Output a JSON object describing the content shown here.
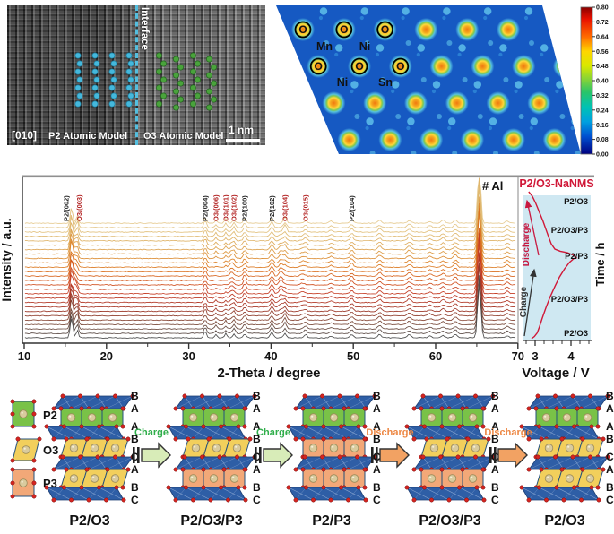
{
  "stem": {
    "zone_axis": "[010]",
    "interface": "Interface",
    "p2_model": "P2 Atomic Model",
    "o3_model": "O3 Atomic Model",
    "scale": "1 nm",
    "p2_dot_color": "#45b8dc",
    "o3_dot_color": "#4aa33c"
  },
  "elf": {
    "o_labels": [
      "O",
      "O",
      "O",
      "O",
      "O",
      "O"
    ],
    "site_labels": [
      "Mn",
      "Ni",
      "Ni",
      "Sn"
    ],
    "colorbar_ticks": [
      "0.80",
      "0.72",
      "0.64",
      "0.56",
      "0.48",
      "0.40",
      "0.32",
      "0.24",
      "0.16",
      "0.08",
      "0.00"
    ],
    "background_color": "#1659c2"
  },
  "chart_data": [
    {
      "type": "line",
      "id": "xrd-waterfall",
      "xlabel": "2-Theta / degree",
      "ylabel": "Intensity / a.u.",
      "xlim": [
        10,
        70
      ],
      "x_ticks": [
        10,
        20,
        30,
        40,
        50,
        60,
        70
      ],
      "n_scans": 27,
      "al_marker": "# Al",
      "sample_label": "P2/O3-NaNMS",
      "sample_label_color": "#d01838",
      "o3_label_color": "#b22222",
      "p2_label_color": "#1a1a1a",
      "scan_color_stops": [
        "#4d4d4d",
        "#7d4a38",
        "#a33628",
        "#c43a24",
        "#d55a1e",
        "#dd7d22",
        "#dda04c",
        "#e0ba72",
        "#e6cb92"
      ],
      "peak_labels": [
        {
          "text": "P2/(002)",
          "two_theta": 15.1,
          "phase": "p2"
        },
        {
          "text": "O3/(003)",
          "two_theta": 16.7,
          "phase": "o3"
        },
        {
          "text": "P2/(004)",
          "two_theta": 32.0,
          "phase": "p2"
        },
        {
          "text": "O3/(006)",
          "two_theta": 33.3,
          "phase": "o3"
        },
        {
          "text": "O3/(101)",
          "two_theta": 34.5,
          "phase": "o3"
        },
        {
          "text": "O3/(102)",
          "two_theta": 35.5,
          "phase": "o3"
        },
        {
          "text": "P2/(100)",
          "two_theta": 36.8,
          "phase": "p2"
        },
        {
          "text": "P2/(102)",
          "two_theta": 40.1,
          "phase": "p2"
        },
        {
          "text": "O3/(104)",
          "two_theta": 41.7,
          "phase": "o3"
        },
        {
          "text": "O3/(015)",
          "two_theta": 44.2,
          "phase": "o3"
        },
        {
          "text": "P2/(104)",
          "two_theta": 49.8,
          "phase": "p2"
        }
      ],
      "peaks": [
        [
          15.75,
          20,
          0.22,
          "all"
        ],
        [
          16.45,
          11,
          0.2,
          "o3"
        ],
        [
          16.15,
          9,
          0.3,
          "p3"
        ],
        [
          32.0,
          6.5,
          0.22,
          "all"
        ],
        [
          33.3,
          4,
          0.2,
          "o3"
        ],
        [
          34.5,
          4.5,
          0.2,
          "o3"
        ],
        [
          35.5,
          5,
          0.22,
          "o3"
        ],
        [
          35.2,
          4,
          0.3,
          "p3"
        ],
        [
          36.8,
          5,
          0.25,
          "all"
        ],
        [
          40.1,
          5.5,
          0.25,
          "all"
        ],
        [
          41.7,
          7,
          0.25,
          "o3"
        ],
        [
          41.2,
          5.5,
          0.3,
          "p3"
        ],
        [
          44.2,
          3.5,
          0.25,
          "o3"
        ],
        [
          43.8,
          2.5,
          0.3,
          "p3"
        ],
        [
          47.3,
          2,
          0.3,
          "all"
        ],
        [
          49.8,
          4,
          0.3,
          "all"
        ],
        [
          53.2,
          3.5,
          0.3,
          "all"
        ],
        [
          56.8,
          3.5,
          0.35,
          "all"
        ],
        [
          59.3,
          2,
          0.3,
          "all"
        ],
        [
          60.9,
          3,
          0.3,
          "all"
        ],
        [
          62.4,
          3.5,
          0.3,
          "all"
        ],
        [
          65.3,
          58,
          0.26,
          "all"
        ],
        [
          68.7,
          2.5,
          0.3,
          "all"
        ]
      ]
    },
    {
      "type": "line",
      "id": "voltage-profile",
      "xlabel": "Voltage / V",
      "ylabel": "Time / h",
      "x_ticks": [
        "3",
        "4"
      ],
      "phase_labels": [
        "P2/O3",
        "P2/O3/P3",
        "P2/P3",
        "P2/O3/P3",
        "P2/O3"
      ],
      "charge_label": "Charge",
      "discharge_label": "Discharge",
      "discharge_color": "#c81840",
      "charge_color": "#333333",
      "curve_color": "#d01838",
      "panel_bg": "#cfe8f2",
      "curve": {
        "charge": [
          [
            2.9,
            0
          ],
          [
            2.98,
            0.015
          ],
          [
            3.06,
            0.04
          ],
          [
            3.12,
            0.08
          ],
          [
            3.2,
            0.14
          ],
          [
            3.3,
            0.21
          ],
          [
            3.42,
            0.285
          ],
          [
            3.55,
            0.355
          ],
          [
            3.68,
            0.42
          ],
          [
            3.82,
            0.475
          ],
          [
            3.96,
            0.52
          ],
          [
            4.08,
            0.545
          ],
          [
            4.15,
            0.55
          ]
        ],
        "discharge": [
          [
            4.15,
            0.55
          ],
          [
            4.05,
            0.57
          ],
          [
            3.9,
            0.585
          ],
          [
            3.7,
            0.595
          ],
          [
            3.55,
            0.61
          ],
          [
            3.45,
            0.645
          ],
          [
            3.38,
            0.69
          ],
          [
            3.3,
            0.745
          ],
          [
            3.22,
            0.8
          ],
          [
            3.12,
            0.86
          ],
          [
            3.02,
            0.92
          ],
          [
            2.92,
            0.97
          ],
          [
            2.82,
            1.0
          ]
        ]
      }
    }
  ],
  "phases": {
    "legend": [
      {
        "label": "P2",
        "color": "#79c247",
        "shape": "rect"
      },
      {
        "label": "O3",
        "color": "#f2cf5c",
        "shape": "para"
      },
      {
        "label": "P3",
        "color": "#f2a878",
        "shape": "rect"
      }
    ],
    "slab_color": "#2e5ea6",
    "dot_color": "#d42420",
    "sphere_color": "#d9cb9e",
    "stacks": [
      {
        "label": "P2/O3",
        "rows": [
          "P2",
          "O3",
          "O3"
        ],
        "letters": [
          "B",
          "A",
          "A",
          "B",
          "C",
          "A",
          "B",
          "C"
        ]
      },
      {
        "label": "P2/O3/P3",
        "rows": [
          "P2",
          "O3",
          "P3"
        ],
        "letters": [
          "B",
          "A",
          "A",
          "B",
          "C",
          "A",
          "B",
          "C"
        ]
      },
      {
        "label": "P2/P3",
        "rows": [
          "P2",
          "P3",
          "P3"
        ],
        "letters": [
          "B",
          "A",
          "A",
          "B",
          "C",
          "A",
          "B",
          "C"
        ]
      },
      {
        "label": "P2/O3/P3",
        "rows": [
          "P2",
          "O3",
          "P3"
        ],
        "letters": [
          "B",
          "A",
          "A",
          "B",
          "C",
          "A",
          "B",
          "C"
        ]
      },
      {
        "label": "P2/O3",
        "rows": [
          "P2",
          "O3",
          "O3"
        ],
        "letters": [
          "B",
          "A",
          "A",
          "B",
          "C",
          "A",
          "B",
          "C"
        ]
      }
    ],
    "arrows": [
      {
        "label": "Charge",
        "kind": "charge",
        "text_color": "#2fae4a",
        "fill": "#d8ecb8"
      },
      {
        "label": "Charge",
        "kind": "charge",
        "text_color": "#2fae4a",
        "fill": "#d8ecb8"
      },
      {
        "label": "Discharge",
        "kind": "discharge",
        "text_color": "#ed8743",
        "fill": "#f2a263"
      },
      {
        "label": "Discharge",
        "kind": "discharge",
        "text_color": "#ed8743",
        "fill": "#f2a263"
      }
    ]
  }
}
